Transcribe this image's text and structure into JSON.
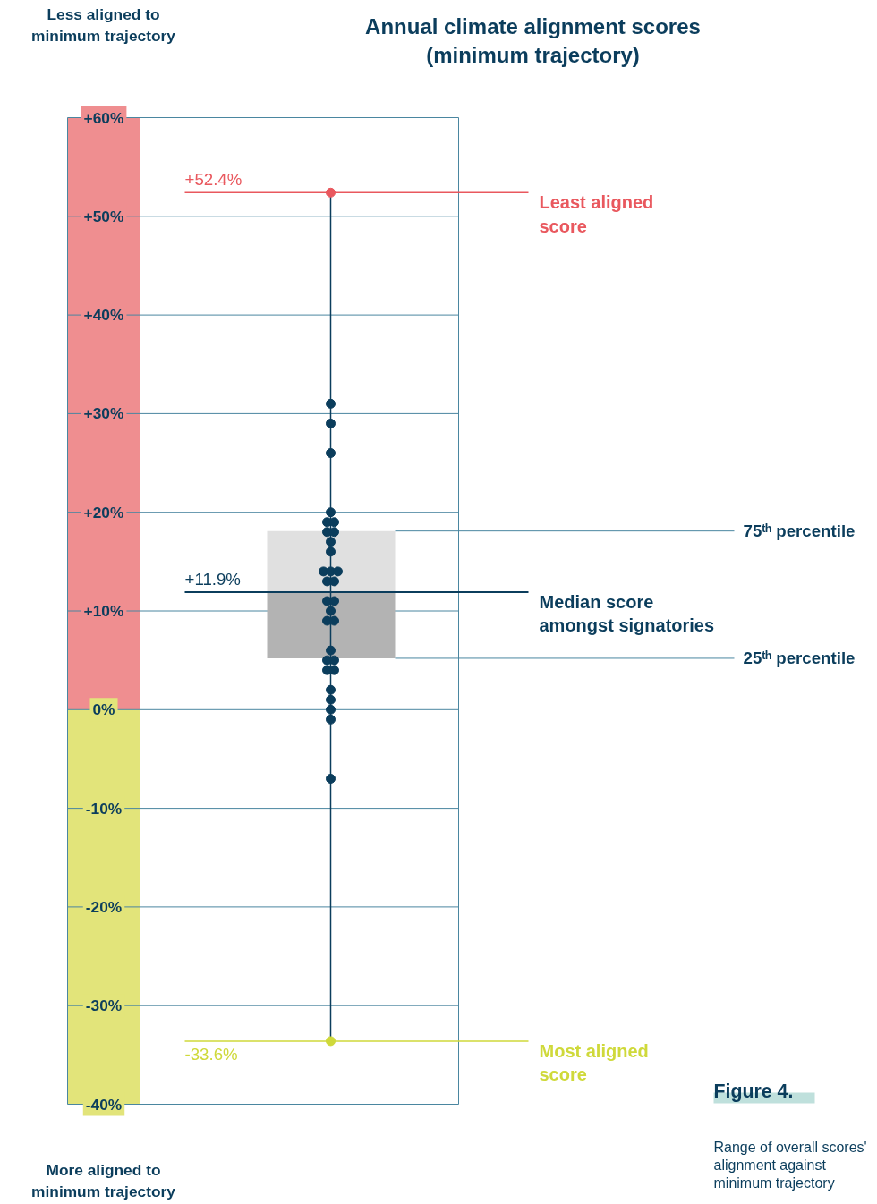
{
  "chart_data": {
    "type": "box",
    "title": "Annual climate alignment scores\n(minimum trajectory)",
    "categories": [
      null
    ],
    "boxes": [
      {
        "low": -33.6,
        "q1": 5.2,
        "median": 11.9,
        "q3": 18.1,
        "high": 52.4
      }
    ],
    "series": [
      {
        "type": "scatter",
        "x": [
          null,
          null,
          null,
          null,
          null,
          null,
          null,
          null,
          null,
          null,
          null,
          null,
          null,
          null,
          null,
          null,
          null,
          null,
          null,
          null,
          null,
          null,
          null,
          null,
          null,
          null,
          null,
          null,
          null,
          null,
          null,
          null
        ],
        "values": [
          52.4,
          31.0,
          29.0,
          26.0,
          20.0,
          19.0,
          19.0,
          18.0,
          18.0,
          17.0,
          16.0,
          14.0,
          14.0,
          14.0,
          13.0,
          13.0,
          11.0,
          11.0,
          10.0,
          9.0,
          9.0,
          6.0,
          5.0,
          5.0,
          4.0,
          4.0,
          2.0,
          1.0,
          0.0,
          -1.0,
          -7.0,
          -33.6
        ],
        "colors": [
          "#e9585e",
          "#0b3d5c",
          "#0b3d5c",
          "#0b3d5c",
          "#0b3d5c",
          "#0b3d5c",
          "#0b3d5c",
          "#0b3d5c",
          "#0b3d5c",
          "#0b3d5c",
          "#0b3d5c",
          "#0b3d5c",
          "#0b3d5c",
          "#0b3d5c",
          "#0b3d5c",
          "#0b3d5c",
          "#0b3d5c",
          "#0b3d5c",
          "#0b3d5c",
          "#0b3d5c",
          "#0b3d5c",
          "#0b3d5c",
          "#0b3d5c",
          "#0b3d5c",
          "#0b3d5c",
          "#0b3d5c",
          "#0b3d5c",
          "#0b3d5c",
          "#0b3d5c",
          "#0b3d5c",
          "#0b3d5c",
          "#cfd93a"
        ]
      }
    ],
    "ylim": [
      -40,
      60
    ],
    "yticks": [
      {
        "value": 60,
        "label": "+60%"
      },
      {
        "value": 50,
        "label": "+50%"
      },
      {
        "value": 40,
        "label": "+40%"
      },
      {
        "value": 30,
        "label": "+30%"
      },
      {
        "value": 20,
        "label": "+20%"
      },
      {
        "value": 10,
        "label": "+10%"
      },
      {
        "value": 0,
        "label": "0%"
      },
      {
        "value": -10,
        "label": "-10%"
      },
      {
        "value": -20,
        "label": "-20%"
      },
      {
        "value": -30,
        "label": "-30%"
      },
      {
        "value": -40,
        "label": "-40%"
      }
    ],
    "grid": "y",
    "marker": "circle",
    "bands": [
      {
        "axis": "y",
        "from": 0,
        "to": 60,
        "color": "#ef8e90"
      },
      {
        "axis": "y",
        "from": -40,
        "to": 0,
        "color": "#e2e47a"
      }
    ],
    "ref_lines": [
      {
        "axis": "y",
        "value": 52.4,
        "label": "Least aligned\nscore",
        "color": "#e9585e"
      },
      {
        "axis": "y",
        "value": 18.1,
        "label": "75ᵗʰ percentile",
        "color": "#4a86a0"
      },
      {
        "axis": "y",
        "value": 11.9,
        "label": "Median score\namongst signatories",
        "color": "#0b3d5c"
      },
      {
        "axis": "y",
        "value": 5.2,
        "label": "25ᵗʰ percentile",
        "color": "#4a86a0"
      },
      {
        "axis": "y",
        "value": -33.6,
        "label": "Most aligned\nscore",
        "color": "#cfd93a"
      }
    ],
    "annotations": [
      "Less aligned to\nminimum trajectory",
      "More aligned to\nminimum trajectory",
      "Figure 4.",
      "Range of overall scores'\nalignment against\nminimum trajectory",
      {
        "text": "+52.4%",
        "y": 52.4
      },
      {
        "text": "+11.9%",
        "y": 11.9
      },
      {
        "text": "-33.6%",
        "y": -33.6
      }
    ]
  }
}
